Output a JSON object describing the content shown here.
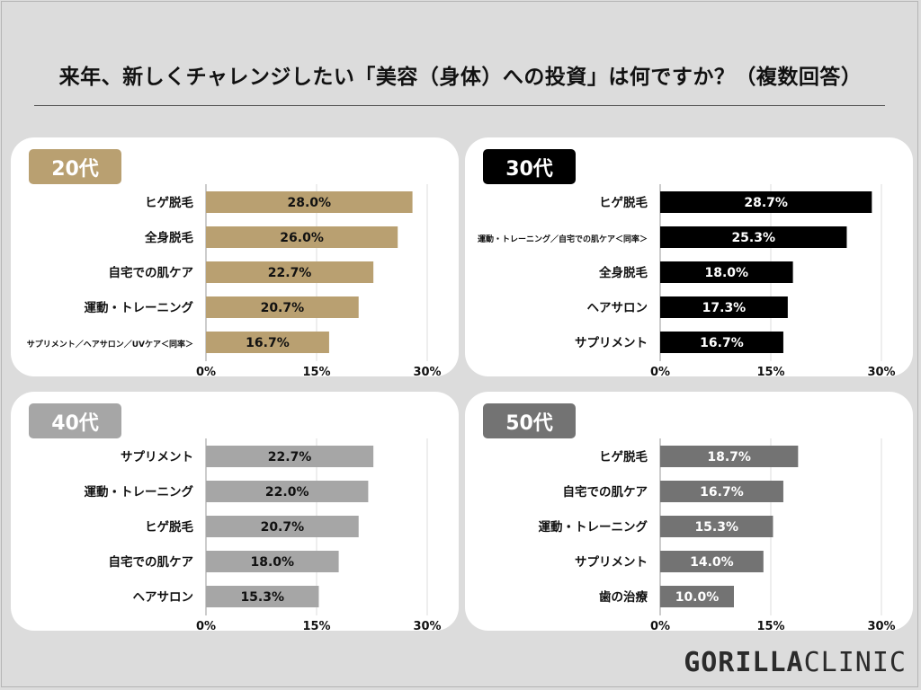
{
  "title": "来年、新しくチャレンジしたい「美容（身体）への投資」は何ですか？（複数回答）",
  "logo": {
    "strong": "GORILLA",
    "light": "CLINIC"
  },
  "chart_data": [
    {
      "type": "bar",
      "orientation": "horizontal",
      "title": "20代",
      "color": "#b9a071",
      "label_color": "#111111",
      "categories": [
        "ヒゲ脱毛",
        "全身脱毛",
        "自宅での肌ケア",
        "運動・トレーニング",
        "サプリメント／ヘアサロン／UVケア＜同率＞"
      ],
      "values": [
        28.0,
        26.0,
        22.7,
        20.7,
        16.7
      ],
      "value_labels": [
        "28.0%",
        "26.0%",
        "22.7%",
        "20.7%",
        "16.7%"
      ],
      "xlim": [
        0,
        30
      ],
      "xticks": [
        0,
        15,
        30
      ],
      "xtick_labels": [
        "0%",
        "15%",
        "30%"
      ]
    },
    {
      "type": "bar",
      "orientation": "horizontal",
      "title": "30代",
      "color": "#000000",
      "label_color": "#ffffff",
      "categories": [
        "ヒゲ脱毛",
        "運動・トレーニング／自宅での肌ケア＜同率＞",
        "全身脱毛",
        "ヘアサロン",
        "サプリメント"
      ],
      "values": [
        28.7,
        25.3,
        18.0,
        17.3,
        16.7
      ],
      "value_labels": [
        "28.7%",
        "25.3%",
        "18.0%",
        "17.3%",
        "16.7%"
      ],
      "xlim": [
        0,
        30
      ],
      "xticks": [
        0,
        15,
        30
      ],
      "xtick_labels": [
        "0%",
        "15%",
        "30%"
      ]
    },
    {
      "type": "bar",
      "orientation": "horizontal",
      "title": "40代",
      "color": "#a6a6a6",
      "label_color": "#111111",
      "categories": [
        "サプリメント",
        "運動・トレーニング",
        "ヒゲ脱毛",
        "自宅での肌ケア",
        "ヘアサロン"
      ],
      "values": [
        22.7,
        22.0,
        20.7,
        18.0,
        15.3
      ],
      "value_labels": [
        "22.7%",
        "22.0%",
        "20.7%",
        "18.0%",
        "15.3%"
      ],
      "xlim": [
        0,
        30
      ],
      "xticks": [
        0,
        15,
        30
      ],
      "xtick_labels": [
        "0%",
        "15%",
        "30%"
      ]
    },
    {
      "type": "bar",
      "orientation": "horizontal",
      "title": "50代",
      "color": "#737373",
      "label_color": "#ffffff",
      "categories": [
        "ヒゲ脱毛",
        "自宅での肌ケア",
        "運動・トレーニング",
        "サプリメント",
        "歯の治療"
      ],
      "values": [
        18.7,
        16.7,
        15.3,
        14.0,
        10.0
      ],
      "value_labels": [
        "18.7%",
        "16.7%",
        "15.3%",
        "14.0%",
        "10.0%"
      ],
      "xlim": [
        0,
        30
      ],
      "xticks": [
        0,
        15,
        30
      ],
      "xtick_labels": [
        "0%",
        "15%",
        "30%"
      ]
    }
  ]
}
